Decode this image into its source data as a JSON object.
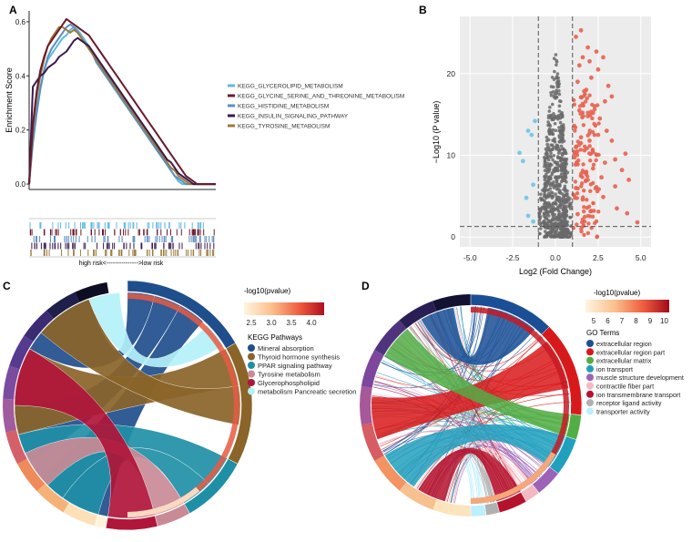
{
  "panel_labels": {
    "a": "A",
    "b": "B",
    "c": "C",
    "d": "D"
  },
  "colors": {
    "glycerolipid": "#5fb8e4",
    "glycine": "#6b1a2c",
    "histidine": "#5a8fc0",
    "insulin": "#3a1a4e",
    "tyrosine": "#9b7a3a",
    "volcano_up": "#e8624f",
    "volcano_down": "#6fc4e6",
    "volcano_ns": "#6a6a6a",
    "mineral": "#1f4e8c",
    "thyroid": "#8a6428",
    "ppar": "#1f8fa6",
    "tyr_met": "#c98a96",
    "glycero": "#b0153a",
    "pancreatic": "#b3f1f7"
  },
  "chart_data": [
    {
      "type": "line",
      "title": "",
      "ylabel": "Enrichment Score",
      "xlabel": "high risk<--------------->low risk",
      "ylim": [
        -0.02,
        0.64
      ],
      "y_ticks": [
        "0.0",
        "0.2",
        "0.4",
        "0.6"
      ],
      "x": [
        0,
        2,
        4,
        6,
        8,
        10,
        12,
        14,
        16,
        18,
        20,
        22,
        24,
        26,
        28,
        30,
        32,
        34,
        36,
        38,
        40,
        42,
        44,
        46,
        48,
        50,
        52,
        54,
        56,
        58,
        60,
        62,
        64,
        66,
        68,
        70,
        72,
        74,
        76,
        78,
        80,
        82,
        84,
        86,
        88,
        90,
        92,
        94,
        96,
        98,
        100
      ],
      "series": [
        {
          "name": "KEGG_GLYCEROLIPID_METABOLISM",
          "values": [
            0.0,
            0.18,
            0.28,
            0.36,
            0.42,
            0.46,
            0.48,
            0.5,
            0.52,
            0.54,
            0.55,
            0.57,
            0.58,
            0.57,
            0.55,
            0.53,
            0.51,
            0.48,
            0.46,
            0.44,
            0.42,
            0.4,
            0.38,
            0.36,
            0.33,
            0.31,
            0.29,
            0.27,
            0.25,
            0.23,
            0.21,
            0.19,
            0.17,
            0.15,
            0.13,
            0.11,
            0.09,
            0.07,
            0.05,
            0.03,
            0.01,
            0.0,
            0.0,
            0.0,
            0.0,
            0.0,
            0.0,
            0.0,
            0.0,
            0.0,
            0.0
          ]
        },
        {
          "name": "KEGG_GLYCINE_SERINE_AND_THREONINE_METABOLISM",
          "values": [
            0.0,
            0.22,
            0.34,
            0.42,
            0.47,
            0.51,
            0.53,
            0.55,
            0.57,
            0.59,
            0.61,
            0.6,
            0.59,
            0.58,
            0.57,
            0.56,
            0.55,
            0.53,
            0.51,
            0.49,
            0.47,
            0.45,
            0.43,
            0.41,
            0.39,
            0.37,
            0.35,
            0.33,
            0.31,
            0.29,
            0.27,
            0.25,
            0.23,
            0.21,
            0.19,
            0.17,
            0.15,
            0.13,
            0.11,
            0.09,
            0.07,
            0.05,
            0.03,
            0.02,
            0.01,
            0.0,
            0.0,
            0.0,
            0.0,
            0.0,
            0.0
          ]
        },
        {
          "name": "KEGG_HISTIDINE_METABOLISM",
          "values": [
            0.0,
            0.15,
            0.26,
            0.35,
            0.42,
            0.47,
            0.5,
            0.52,
            0.54,
            0.56,
            0.58,
            0.59,
            0.58,
            0.56,
            0.54,
            0.52,
            0.5,
            0.48,
            0.45,
            0.43,
            0.41,
            0.39,
            0.37,
            0.35,
            0.33,
            0.31,
            0.29,
            0.27,
            0.25,
            0.23,
            0.21,
            0.19,
            0.17,
            0.15,
            0.13,
            0.11,
            0.09,
            0.07,
            0.05,
            0.03,
            0.02,
            0.01,
            0.0,
            0.0,
            0.0,
            0.0,
            0.0,
            0.0,
            0.0,
            0.0,
            0.0
          ]
        },
        {
          "name": "KEGG_INSULIN_SIGNALING_PATHWAY",
          "values": [
            0.0,
            0.36,
            0.38,
            0.4,
            0.41,
            0.43,
            0.44,
            0.45,
            0.47,
            0.48,
            0.49,
            0.51,
            0.53,
            0.54,
            0.53,
            0.52,
            0.51,
            0.49,
            0.47,
            0.45,
            0.43,
            0.41,
            0.39,
            0.37,
            0.35,
            0.33,
            0.31,
            0.29,
            0.27,
            0.25,
            0.23,
            0.21,
            0.19,
            0.17,
            0.15,
            0.13,
            0.11,
            0.09,
            0.08,
            0.06,
            0.04,
            0.03,
            0.02,
            0.01,
            0.0,
            0.0,
            0.0,
            0.0,
            0.0,
            0.0,
            0.0
          ]
        },
        {
          "name": "KEGG_TYROSINE_METABOLISM",
          "values": [
            0.0,
            0.2,
            0.32,
            0.4,
            0.46,
            0.51,
            0.54,
            0.56,
            0.58,
            0.58,
            0.57,
            0.56,
            0.57,
            0.56,
            0.54,
            0.52,
            0.5,
            0.48,
            0.46,
            0.44,
            0.42,
            0.4,
            0.38,
            0.36,
            0.34,
            0.32,
            0.3,
            0.28,
            0.26,
            0.24,
            0.22,
            0.2,
            0.18,
            0.16,
            0.14,
            0.12,
            0.1,
            0.08,
            0.06,
            0.05,
            0.03,
            0.02,
            0.01,
            0.0,
            0.0,
            0.0,
            0.0,
            0.0,
            0.0,
            0.0,
            0.0
          ]
        }
      ]
    },
    {
      "type": "scatter",
      "xlabel": "Log2 (Fold Change)",
      "ylabel": "−Log10 (P value)",
      "xlim": [
        -5.6,
        5.6
      ],
      "ylim": [
        -1.2,
        27
      ],
      "x_ticks": [
        "-5.0",
        "-2.5",
        "0.0",
        "2.5",
        "5.0"
      ],
      "y_ticks": [
        "0",
        "10",
        "20"
      ],
      "fc_cutoff": 1,
      "p_cutoff": 1.3,
      "up_points": [
        [
          1.2,
          24.5
        ],
        [
          1.5,
          25.3
        ],
        [
          1.6,
          22.0
        ],
        [
          2.0,
          21.5
        ],
        [
          2.4,
          22.7
        ],
        [
          2.8,
          22.0
        ],
        [
          2.5,
          20.5
        ],
        [
          3.1,
          18.5
        ],
        [
          3.3,
          17.2
        ],
        [
          2.3,
          16.0
        ],
        [
          2.6,
          14.5
        ],
        [
          3.0,
          13.0
        ],
        [
          3.3,
          11.8
        ],
        [
          3.5,
          9.5
        ],
        [
          4.1,
          10.2
        ],
        [
          2.2,
          8.4
        ],
        [
          2.7,
          7.3
        ],
        [
          3.5,
          6.2
        ],
        [
          4.3,
          7.0
        ],
        [
          2.8,
          4.9
        ],
        [
          2.1,
          3.2
        ],
        [
          3.6,
          3.5
        ],
        [
          4.2,
          2.9
        ],
        [
          4.8,
          1.8
        ],
        [
          1.3,
          19.0
        ],
        [
          1.8,
          18.0
        ],
        [
          1.4,
          15.5
        ],
        [
          1.9,
          14.8
        ],
        [
          1.5,
          12.2
        ],
        [
          1.7,
          10.6
        ],
        [
          2.0,
          11.8
        ],
        [
          1.3,
          8.9
        ],
        [
          1.8,
          7.9
        ],
        [
          1.2,
          6.0
        ],
        [
          1.6,
          4.6
        ],
        [
          1.3,
          2.8
        ],
        [
          1.7,
          1.9
        ],
        [
          2.4,
          6.1
        ],
        [
          2.9,
          9.1
        ],
        [
          1.1,
          13.6
        ],
        [
          1.5,
          17.1
        ],
        [
          2.1,
          19.5
        ],
        [
          1.4,
          21.0
        ],
        [
          1.9,
          23.2
        ],
        [
          1.2,
          11.0
        ],
        [
          2.5,
          12.5
        ],
        [
          3.9,
          8.2
        ],
        [
          1.6,
          16.3
        ],
        [
          2.2,
          15.2
        ],
        [
          2.9,
          16.6
        ]
      ],
      "down_points": [
        [
          -1.3,
          1.9
        ],
        [
          -1.6,
          2.6
        ],
        [
          -1.9,
          9.3
        ],
        [
          -2.1,
          10.3
        ],
        [
          -1.4,
          12.5
        ],
        [
          -1.2,
          14.2
        ],
        [
          -1.6,
          13.0
        ],
        [
          -1.3,
          6.4
        ],
        [
          -1.7,
          4.8
        ]
      ]
    },
    {
      "type": "chord",
      "legend_title": "KEGG Pathways",
      "scale_title": "-log10(pvalue)",
      "scale_ticks": [
        "2.5",
        "3.0",
        "3.5",
        "4.0"
      ],
      "categories": [
        "Mineral absorption",
        "Thyroid hormone synthesis",
        "PPAR signaling pathway",
        "Tyrosine metabolism",
        "Glycerophospholipid",
        "metabolism Pancreatic secretion"
      ]
    },
    {
      "type": "chord",
      "legend_title": "GO Terms",
      "scale_title": "-log10(pvalue)",
      "scale_ticks": [
        "5",
        "6",
        "7",
        "8",
        "9",
        "10"
      ],
      "categories": [
        "extracellular region",
        "extracellular region part",
        "extracellular matrix",
        "ion transport",
        "muscle structure development",
        "contractile fiber part",
        "ion transmembrane transport",
        "receptor ligand activity",
        "transporter activity"
      ]
    }
  ]
}
